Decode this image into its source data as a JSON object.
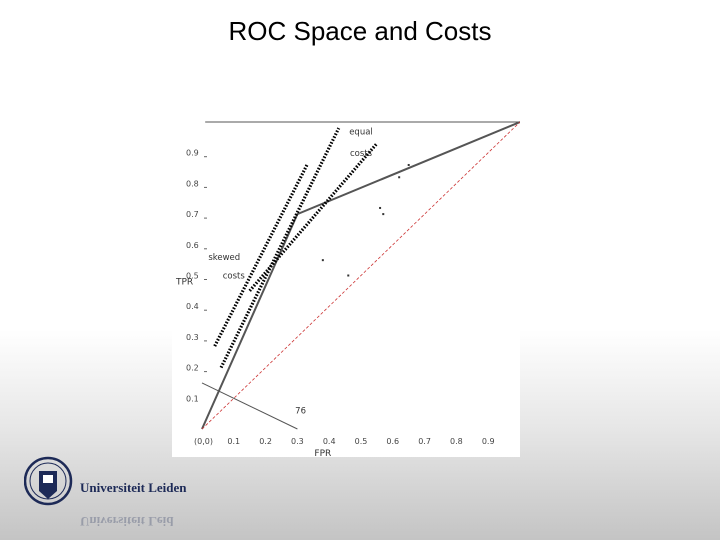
{
  "slide": {
    "title": "ROC Space and Costs"
  },
  "logo": {
    "text": "Universiteit Leiden"
  },
  "chart_data": {
    "type": "scatter",
    "title": "",
    "xlabel": "FPR",
    "ylabel": "TPR",
    "xlim": [
      0,
      1
    ],
    "ylim": [
      0,
      1
    ],
    "x_ticks": [
      "(0,0)",
      "0.1",
      "0.2",
      "0.3",
      "0.4",
      "0.5",
      "0.6",
      "0.7",
      "0.8",
      "0.9"
    ],
    "y_ticks": [
      "0.1",
      "0.2",
      "0.3",
      "0.4",
      "0.5",
      "0.6",
      "0.7",
      "0.8",
      "0.9"
    ],
    "series": [
      {
        "values": [
          [
            0,
            0
          ],
          [
            0.3,
            0.7
          ],
          [
            1,
            1
          ]
        ],
        "kind": "roc-convex-hull",
        "color": "#555555"
      },
      {
        "values": [
          [
            0,
            0
          ],
          [
            1,
            1
          ]
        ],
        "kind": "diagonal",
        "color": "#cc3333"
      },
      {
        "values": [
          [
            0,
            0.15
          ],
          [
            0.3,
            0.0
          ]
        ],
        "kind": "iso-performance",
        "color": "#555555"
      },
      {
        "values": [
          [
            0.06,
            0.2
          ],
          [
            0.43,
            0.98
          ]
        ],
        "kind": "iso-skewed-costs",
        "color": "#000000"
      },
      {
        "values": [
          [
            0.15,
            0.45
          ],
          [
            0.55,
            0.93
          ]
        ],
        "kind": "iso-equal-costs",
        "color": "#000000"
      },
      {
        "values": [
          [
            0.04,
            0.27
          ],
          [
            0.33,
            0.86
          ]
        ],
        "kind": "iso-skewed-costs",
        "color": "#000000"
      },
      {
        "values": [
          [
            0.62,
            0.82
          ],
          [
            0.65,
            0.86
          ],
          [
            0.56,
            0.72
          ],
          [
            0.57,
            0.7
          ],
          [
            0.38,
            0.55
          ],
          [
            0.46,
            0.5
          ]
        ],
        "kind": "classifiers"
      }
    ],
    "annotations": [
      {
        "text": "equal",
        "x": 0.5,
        "y": 0.96
      },
      {
        "text": "costs",
        "x": 0.5,
        "y": 0.89
      },
      {
        "text": "skewed",
        "x": 0.07,
        "y": 0.55
      },
      {
        "text": "costs",
        "x": 0.1,
        "y": 0.49
      },
      {
        "text": "76",
        "x": 0.31,
        "y": 0.05
      }
    ]
  }
}
